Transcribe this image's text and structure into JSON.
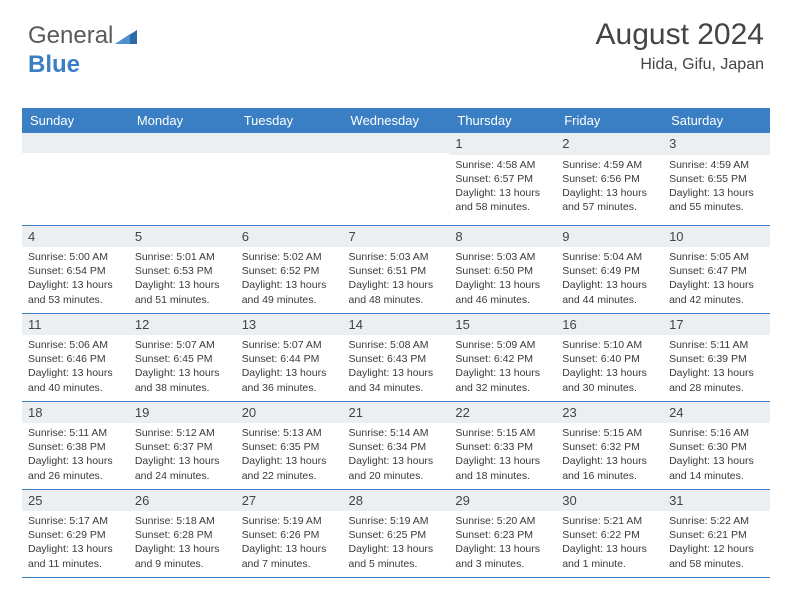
{
  "logo": {
    "part1": "General",
    "part2": "Blue"
  },
  "title": {
    "month": "August 2024",
    "location": "Hida, Gifu, Japan"
  },
  "colors": {
    "header_bg": "#3a7fc4",
    "header_text": "#ffffff",
    "daynum_bg": "#eceff1",
    "body_text": "#3a3a3a",
    "rule": "#3a7fc4",
    "page_bg": "#ffffff"
  },
  "typography": {
    "title_fontsize": 30,
    "location_fontsize": 16,
    "dayheader_fontsize": 13,
    "daynum_fontsize": 13,
    "info_fontsize": 10.5
  },
  "calendar": {
    "type": "table",
    "day_headers": [
      "Sunday",
      "Monday",
      "Tuesday",
      "Wednesday",
      "Thursday",
      "Friday",
      "Saturday"
    ],
    "weeks": [
      [
        null,
        null,
        null,
        null,
        {
          "n": "1",
          "sunrise": "4:58 AM",
          "sunset": "6:57 PM",
          "daylight": "13 hours and 58 minutes."
        },
        {
          "n": "2",
          "sunrise": "4:59 AM",
          "sunset": "6:56 PM",
          "daylight": "13 hours and 57 minutes."
        },
        {
          "n": "3",
          "sunrise": "4:59 AM",
          "sunset": "6:55 PM",
          "daylight": "13 hours and 55 minutes."
        }
      ],
      [
        {
          "n": "4",
          "sunrise": "5:00 AM",
          "sunset": "6:54 PM",
          "daylight": "13 hours and 53 minutes."
        },
        {
          "n": "5",
          "sunrise": "5:01 AM",
          "sunset": "6:53 PM",
          "daylight": "13 hours and 51 minutes."
        },
        {
          "n": "6",
          "sunrise": "5:02 AM",
          "sunset": "6:52 PM",
          "daylight": "13 hours and 49 minutes."
        },
        {
          "n": "7",
          "sunrise": "5:03 AM",
          "sunset": "6:51 PM",
          "daylight": "13 hours and 48 minutes."
        },
        {
          "n": "8",
          "sunrise": "5:03 AM",
          "sunset": "6:50 PM",
          "daylight": "13 hours and 46 minutes."
        },
        {
          "n": "9",
          "sunrise": "5:04 AM",
          "sunset": "6:49 PM",
          "daylight": "13 hours and 44 minutes."
        },
        {
          "n": "10",
          "sunrise": "5:05 AM",
          "sunset": "6:47 PM",
          "daylight": "13 hours and 42 minutes."
        }
      ],
      [
        {
          "n": "11",
          "sunrise": "5:06 AM",
          "sunset": "6:46 PM",
          "daylight": "13 hours and 40 minutes."
        },
        {
          "n": "12",
          "sunrise": "5:07 AM",
          "sunset": "6:45 PM",
          "daylight": "13 hours and 38 minutes."
        },
        {
          "n": "13",
          "sunrise": "5:07 AM",
          "sunset": "6:44 PM",
          "daylight": "13 hours and 36 minutes."
        },
        {
          "n": "14",
          "sunrise": "5:08 AM",
          "sunset": "6:43 PM",
          "daylight": "13 hours and 34 minutes."
        },
        {
          "n": "15",
          "sunrise": "5:09 AM",
          "sunset": "6:42 PM",
          "daylight": "13 hours and 32 minutes."
        },
        {
          "n": "16",
          "sunrise": "5:10 AM",
          "sunset": "6:40 PM",
          "daylight": "13 hours and 30 minutes."
        },
        {
          "n": "17",
          "sunrise": "5:11 AM",
          "sunset": "6:39 PM",
          "daylight": "13 hours and 28 minutes."
        }
      ],
      [
        {
          "n": "18",
          "sunrise": "5:11 AM",
          "sunset": "6:38 PM",
          "daylight": "13 hours and 26 minutes."
        },
        {
          "n": "19",
          "sunrise": "5:12 AM",
          "sunset": "6:37 PM",
          "daylight": "13 hours and 24 minutes."
        },
        {
          "n": "20",
          "sunrise": "5:13 AM",
          "sunset": "6:35 PM",
          "daylight": "13 hours and 22 minutes."
        },
        {
          "n": "21",
          "sunrise": "5:14 AM",
          "sunset": "6:34 PM",
          "daylight": "13 hours and 20 minutes."
        },
        {
          "n": "22",
          "sunrise": "5:15 AM",
          "sunset": "6:33 PM",
          "daylight": "13 hours and 18 minutes."
        },
        {
          "n": "23",
          "sunrise": "5:15 AM",
          "sunset": "6:32 PM",
          "daylight": "13 hours and 16 minutes."
        },
        {
          "n": "24",
          "sunrise": "5:16 AM",
          "sunset": "6:30 PM",
          "daylight": "13 hours and 14 minutes."
        }
      ],
      [
        {
          "n": "25",
          "sunrise": "5:17 AM",
          "sunset": "6:29 PM",
          "daylight": "13 hours and 11 minutes."
        },
        {
          "n": "26",
          "sunrise": "5:18 AM",
          "sunset": "6:28 PM",
          "daylight": "13 hours and 9 minutes."
        },
        {
          "n": "27",
          "sunrise": "5:19 AM",
          "sunset": "6:26 PM",
          "daylight": "13 hours and 7 minutes."
        },
        {
          "n": "28",
          "sunrise": "5:19 AM",
          "sunset": "6:25 PM",
          "daylight": "13 hours and 5 minutes."
        },
        {
          "n": "29",
          "sunrise": "5:20 AM",
          "sunset": "6:23 PM",
          "daylight": "13 hours and 3 minutes."
        },
        {
          "n": "30",
          "sunrise": "5:21 AM",
          "sunset": "6:22 PM",
          "daylight": "13 hours and 1 minute."
        },
        {
          "n": "31",
          "sunrise": "5:22 AM",
          "sunset": "6:21 PM",
          "daylight": "12 hours and 58 minutes."
        }
      ]
    ]
  }
}
